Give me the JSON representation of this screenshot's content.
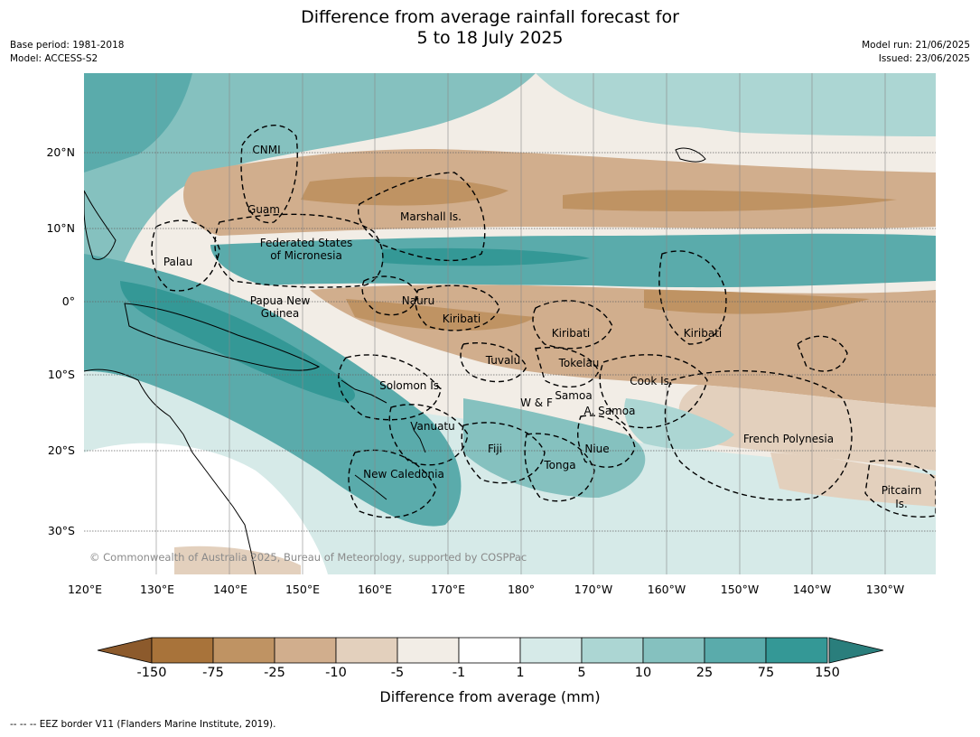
{
  "title": {
    "line1": "Difference from average rainfall forecast for",
    "line2": "5 to 18 July 2025"
  },
  "meta_left": {
    "base_period": "Base period: 1981-2018",
    "model": "Model: ACCESS-S2"
  },
  "meta_right": {
    "model_run": "Model run: 21/06/2025",
    "issued": "Issued: 23/06/2025"
  },
  "lat_ticks": [
    "20°N",
    "10°N",
    "0°",
    "10°S",
    "20°S",
    "30°S"
  ],
  "lon_ticks": [
    "120°E",
    "130°E",
    "140°E",
    "150°E",
    "160°E",
    "170°E",
    "180°",
    "170°W",
    "160°W",
    "150°W",
    "140°W",
    "130°W"
  ],
  "country_labels": {
    "cnmi": "CNMI",
    "guam": "Guam",
    "marshall": "Marshall Is.",
    "fsm_1": "Federated States",
    "fsm_2": "of Micronesia",
    "palau": "Palau",
    "png_1": "Papua New",
    "png_2": "Guinea",
    "nauru": "Nauru",
    "kiribati_w": "Kiribati",
    "kiribati_c": "Kiribati",
    "kiribati_e": "Kiribati",
    "tuvalu": "Tuvalu",
    "tokelau": "Tokelau",
    "cook": "Cook Is.",
    "solomon": "Solomon Is.",
    "wf": "W & F",
    "samoa": "Samoa",
    "asamoa": "A. Samoa",
    "vanuatu": "Vanuatu",
    "fiji": "Fiji",
    "niue": "Niue",
    "tonga": "Tonga",
    "frpoly": "French Polynesia",
    "newcal": "New Caledonia",
    "pitcairn_1": "Pitcairn",
    "pitcairn_2": "Is."
  },
  "copyright": "© Commonwealth of Australia 2025, Bureau of Meteorology, supported by COSPPac",
  "colorbar": {
    "labels": [
      "-150",
      "-75",
      "-25",
      "-10",
      "-5",
      "-1",
      "1",
      "5",
      "10",
      "25",
      "75",
      "150"
    ],
    "colors": [
      "#a8733a",
      "#bf9363",
      "#d1ae8d",
      "#e3d0bd",
      "#f2ede6",
      "#ffffff",
      "#d6eae8",
      "#acd6d3",
      "#85c1bf",
      "#5aabab",
      "#349896"
    ],
    "extend_low_color": "#8c5a2c",
    "extend_high_color": "#2a7e7c",
    "title": "Difference from average (mm)"
  },
  "footer": "--  --  -- EEZ border V11 (Flanders Marine Institute, 2019)."
}
